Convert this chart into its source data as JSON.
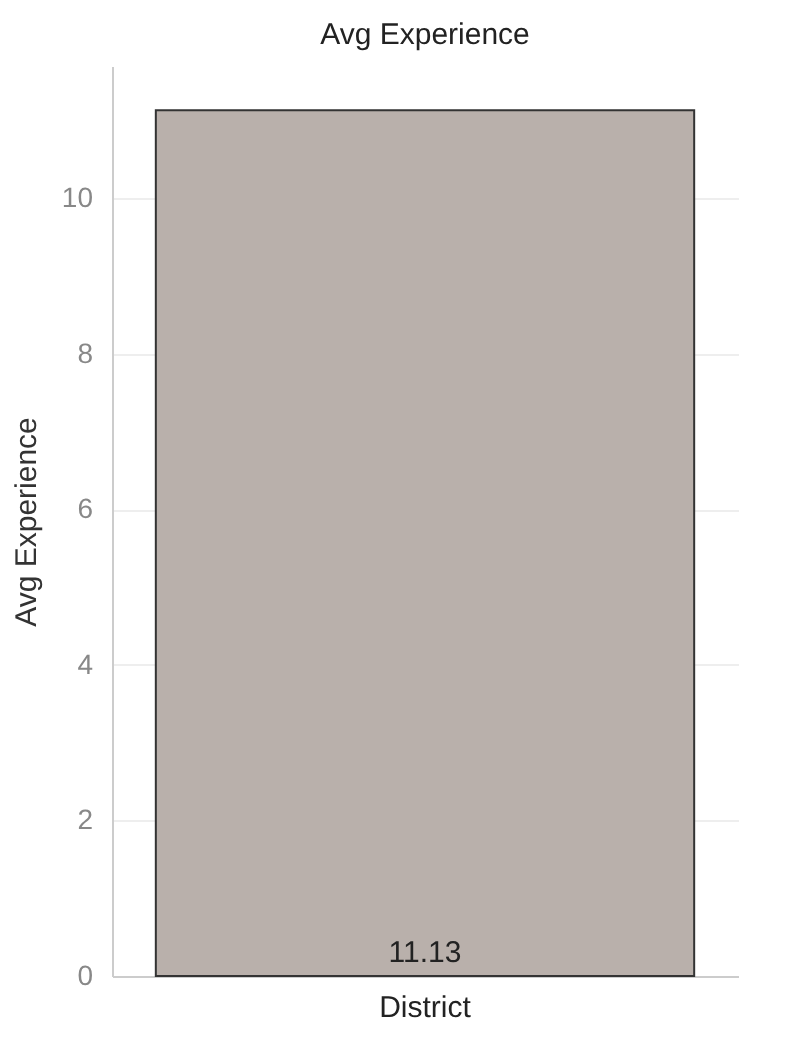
{
  "chart_data": {
    "type": "bar",
    "title": "Avg Experience",
    "ylabel": "Avg Experience",
    "categories": [
      "District"
    ],
    "values": [
      11.13
    ],
    "color": "#b9b0ab",
    "ylim": [
      0,
      11.7
    ],
    "yticks": [
      0,
      2,
      4,
      6,
      8,
      10
    ],
    "grid": "y",
    "data_labels": true
  }
}
